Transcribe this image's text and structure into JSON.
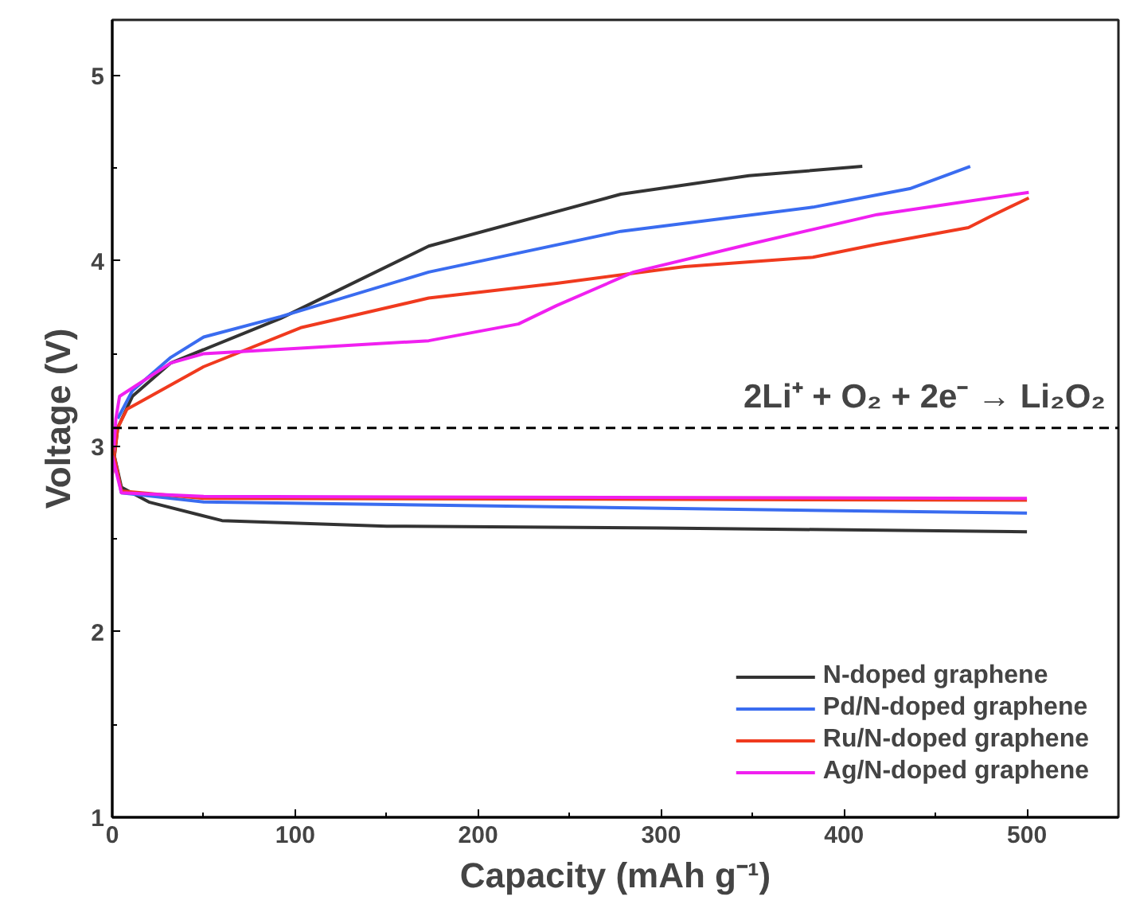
{
  "chart_data": {
    "type": "line",
    "xlabel": "Capacity (mAh g⁻¹)",
    "ylabel": "Voltage (V)",
    "xlim": [
      0,
      550
    ],
    "ylim": [
      1,
      5.3
    ],
    "xticks": [
      0,
      100,
      200,
      300,
      400,
      500
    ],
    "yticks": [
      1,
      2,
      3,
      4,
      5
    ],
    "grid": false,
    "legend": "bottom right",
    "line_style": "solid",
    "marker": "none",
    "ref_lines": [
      {
        "axis": "y",
        "value": 3.1,
        "label": "2Li⁺ + O₂ + 2e⁻ → Li₂O₂",
        "color": "#000000",
        "line_style": "dashed"
      }
    ],
    "series": [
      {
        "name": "N-doped graphene",
        "color": "#333333",
        "x": [
          0,
          3,
          11,
          32,
          92,
          173,
          278,
          348,
          410
        ],
        "values": [
          2.85,
          3.1,
          3.27,
          3.45,
          3.69,
          4.08,
          4.36,
          4.46,
          4.51
        ]
      },
      {
        "name": "Pd/N-doped graphene",
        "color": "#3a6cf0",
        "x": [
          3,
          11,
          32,
          50,
          92,
          173,
          278,
          383,
          436,
          469
        ],
        "values": [
          3.15,
          3.3,
          3.48,
          3.59,
          3.7,
          3.94,
          4.16,
          4.29,
          4.39,
          4.51
        ]
      },
      {
        "name": "Ru/N-doped graphene",
        "color": "#f03a1e",
        "x": [
          0,
          3,
          8,
          50,
          103,
          173,
          243,
          313,
          383,
          418,
          468,
          480,
          501
        ],
        "values": [
          2.85,
          3.1,
          3.2,
          3.43,
          3.64,
          3.8,
          3.88,
          3.97,
          4.02,
          4.09,
          4.18,
          4.24,
          4.34
        ]
      },
      {
        "name": "Ag/N-doped graphene",
        "color": "#f020f0",
        "x": [
          0,
          2,
          4,
          32,
          50,
          103,
          173,
          222,
          243,
          285,
          348,
          418,
          501
        ],
        "values": [
          2.85,
          3.15,
          3.27,
          3.45,
          3.5,
          3.53,
          3.57,
          3.66,
          3.76,
          3.94,
          4.09,
          4.25,
          4.37
        ]
      },
      {
        "color": "#333333",
        "x": [
          0,
          5,
          20,
          60,
          150,
          300,
          500
        ],
        "values": [
          3.0,
          2.78,
          2.7,
          2.6,
          2.57,
          2.56,
          2.54
        ]
      },
      {
        "color": "#3a6cf0",
        "x": [
          0,
          5,
          50,
          200,
          500
        ],
        "values": [
          3.0,
          2.75,
          2.7,
          2.68,
          2.64
        ]
      },
      {
        "color": "#f03a1e",
        "x": [
          0,
          5,
          50,
          500
        ],
        "values": [
          3.0,
          2.76,
          2.72,
          2.71
        ]
      },
      {
        "color": "#f020f0",
        "x": [
          0,
          5,
          50,
          500
        ],
        "values": [
          2.95,
          2.75,
          2.73,
          2.72
        ]
      }
    ]
  }
}
